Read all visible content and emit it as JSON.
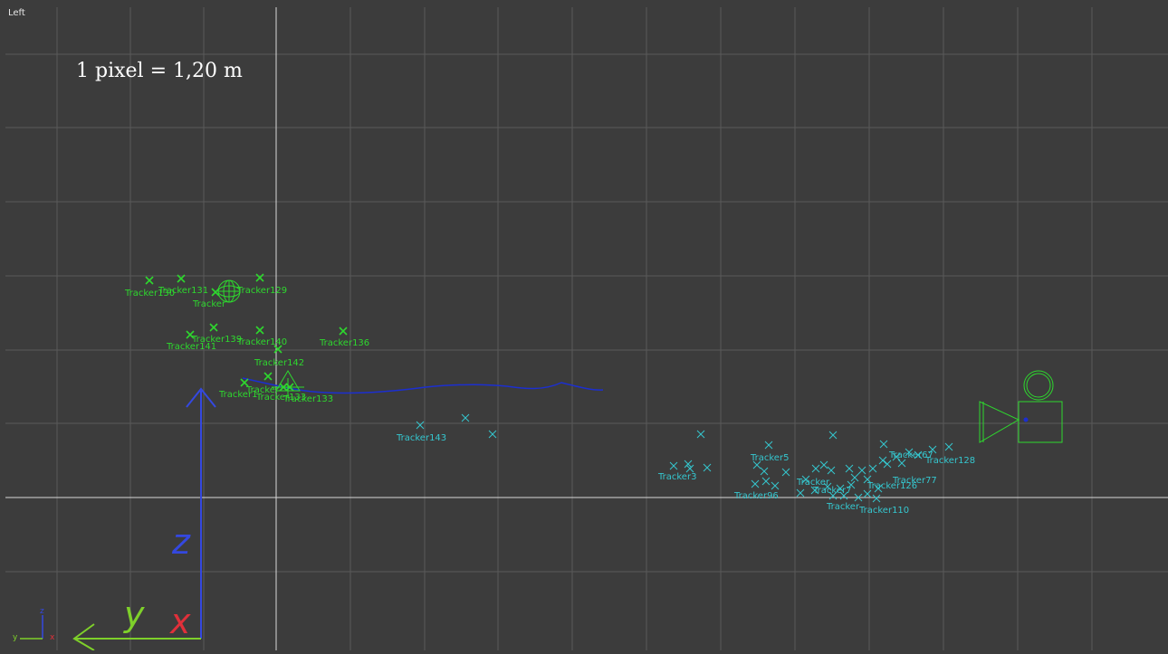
{
  "viewport": {
    "view_name": "Left",
    "scale_text": "1 pixel = 1,20 m"
  },
  "colors": {
    "background": "#3c3c3c",
    "grid": "#5a5a5a",
    "axis_line": "#d8d8d8",
    "tracker_green": "#2ed82e",
    "tracker_cyan": "#35c7cf",
    "path_blue": "#1c2fd0",
    "axis_z": "#3448e0",
    "axis_y": "#7ed02a",
    "axis_x": "#e0303a"
  },
  "axes": {
    "z_label": "z",
    "y_label": "y",
    "x_label": "x",
    "mini_z": "z",
    "mini_y": "y",
    "mini_x": "x"
  },
  "trackers_green": [
    {
      "name": "Tracker130",
      "label": "Tracker130"
    },
    {
      "name": "Tracker131",
      "label": "Tracker131"
    },
    {
      "name": "Tracker129",
      "label": "Tracker129"
    },
    {
      "name": "Tracker141",
      "label": "Tracker141"
    },
    {
      "name": "Tracker139",
      "label": "Tracker139"
    },
    {
      "name": "Tracker140",
      "label": "Tracker140"
    },
    {
      "name": "Tracker136",
      "label": "Tracker136"
    },
    {
      "name": "Tracker142",
      "label": "Tracker142"
    },
    {
      "name": "Tracker133",
      "label": "Tracker133"
    },
    {
      "name": "Tracker1",
      "label": "Tracker1"
    },
    {
      "name": "Tracker-cluster",
      "label": "Tracker"
    },
    {
      "name": "Tracker-overlap",
      "label": "Tracker133"
    },
    {
      "name": "Tracker-sphere",
      "label": "Tracker"
    }
  ],
  "trackers_cyan": [
    {
      "name": "Tracker143",
      "label": "Tracker143"
    },
    {
      "name": "Tracker3",
      "label": "Tracker3"
    },
    {
      "name": "Tracker5",
      "label": "Tracker5"
    },
    {
      "name": "Tracker96",
      "label": "Tracker96"
    },
    {
      "name": "Tracker-mid",
      "label": "Tracker"
    },
    {
      "name": "Tracker77",
      "label": "Tracker77"
    },
    {
      "name": "Tracker126",
      "label": "Tracker126"
    },
    {
      "name": "Tracker7",
      "label": "Tracker7"
    },
    {
      "name": "Tracker128",
      "label": "Tracker128"
    },
    {
      "name": "Tracker110",
      "label": "Tracker110"
    },
    {
      "name": "Tracker-bottom",
      "label": "Tracker"
    },
    {
      "name": "Tracker67",
      "label": "Tracker67"
    }
  ]
}
